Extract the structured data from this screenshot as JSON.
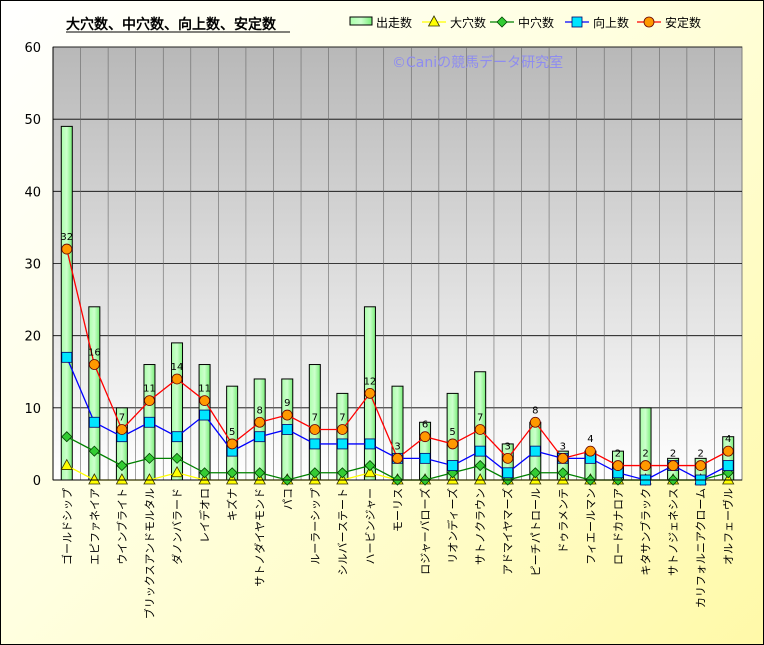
{
  "chart_data": {
    "type": "bar+line",
    "title": "大穴数、中穴数、向上数、安定数",
    "watermark": "©Caniの競馬データ研究室",
    "categories": [
      "ゴールドシップ",
      "エピファネイア",
      "ウインブライト",
      "ブリックスアンドモルタル",
      "ダノンバラード",
      "レイデオロ",
      "キズナ",
      "サトノダイヤモンド",
      "パコ",
      "ルーラーシップ",
      "シルバーステート",
      "ハービンジャー",
      "モーリス",
      "ロジャーバローズ",
      "リオンディーズ",
      "サトノクラウン",
      "アドマイヤマーズ",
      "ピーチパトロール",
      "ドゥラメンテ",
      "フィエールマン",
      "ロードカナロア",
      "キタサンブラック",
      "サトノジェネシス",
      "カリフォルニアクローム",
      "オルフェーヴル"
    ],
    "ylim": [
      0,
      60
    ],
    "yticks": [
      0,
      10,
      20,
      30,
      40,
      50,
      60
    ],
    "legend_position": "top-right",
    "grid": true,
    "series": [
      {
        "name": "出走数",
        "kind": "bar",
        "color": "#99ff99",
        "values": [
          49,
          24,
          10,
          16,
          19,
          16,
          13,
          14,
          14,
          16,
          12,
          24,
          13,
          8,
          12,
          15,
          5,
          8,
          4,
          4,
          4,
          10,
          3,
          3,
          6
        ]
      },
      {
        "name": "大穴数",
        "kind": "line",
        "color": "#ffff00",
        "values": [
          2,
          0,
          0,
          0,
          1,
          0,
          0,
          0,
          0,
          0,
          0,
          1,
          0,
          0,
          0,
          0,
          0,
          0,
          0,
          0,
          0,
          0,
          0,
          0,
          0
        ]
      },
      {
        "name": "中穴数",
        "kind": "line",
        "color": "#008000",
        "values": [
          6,
          4,
          2,
          3,
          3,
          1,
          1,
          1,
          0,
          1,
          1,
          2,
          0,
          0,
          1,
          2,
          0,
          1,
          1,
          0,
          0,
          0,
          0,
          0,
          1
        ]
      },
      {
        "name": "向上数",
        "kind": "line",
        "color": "#0000ff",
        "values": [
          17,
          8,
          6,
          8,
          6,
          9,
          4,
          6,
          7,
          5,
          5,
          5,
          3,
          3,
          2,
          4,
          1,
          4,
          3,
          3,
          1,
          0,
          2,
          0,
          2
        ]
      },
      {
        "name": "安定数",
        "kind": "line",
        "color": "#ff0000",
        "values": [
          32,
          16,
          7,
          11,
          14,
          11,
          5,
          8,
          9,
          7,
          7,
          12,
          3,
          6,
          5,
          7,
          3,
          8,
          3,
          4,
          2,
          2,
          2,
          2,
          4
        ]
      }
    ]
  }
}
